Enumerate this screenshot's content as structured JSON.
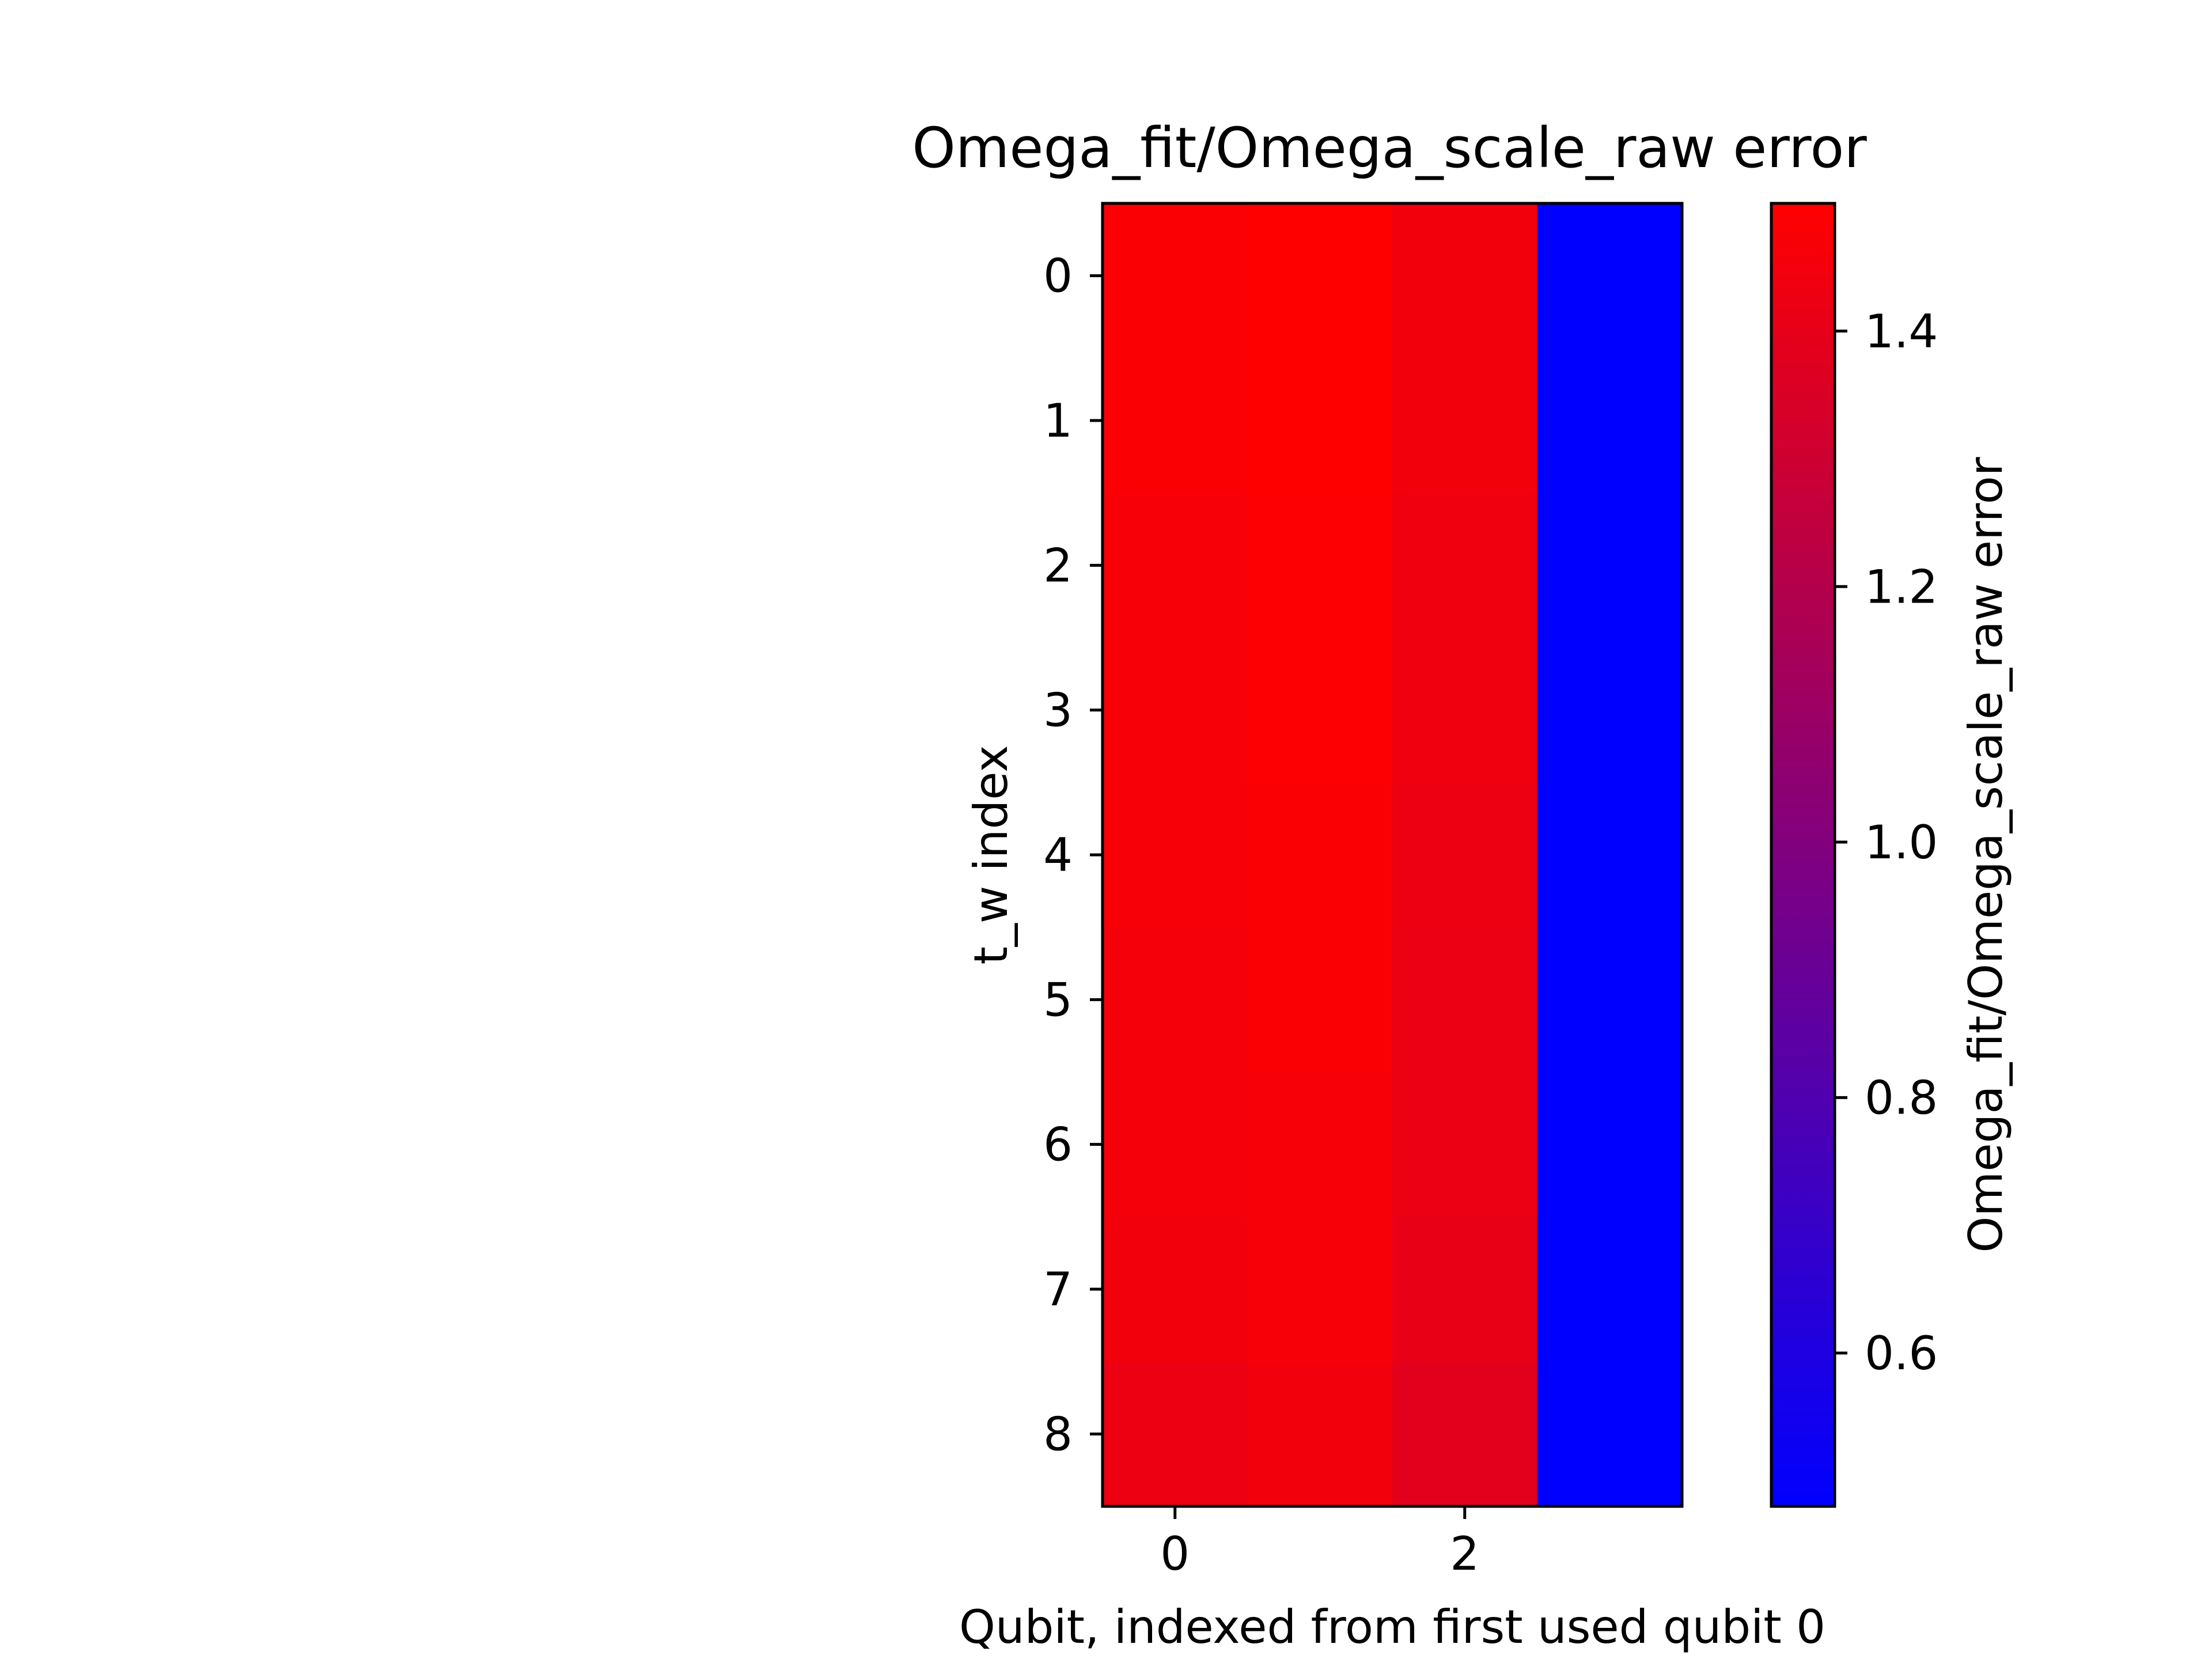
{
  "chart_data": {
    "type": "heatmap",
    "title": "Omega_fit/Omega_scale_raw error",
    "xlabel": "Qubit, indexed from first used qubit 0",
    "ylabel": "t_w index",
    "x_ticks": [
      0,
      2
    ],
    "y_ticks": [
      0,
      1,
      2,
      3,
      4,
      5,
      6,
      7,
      8
    ],
    "columns": [
      0,
      1,
      2,
      3
    ],
    "rows": [
      0,
      1,
      2,
      3,
      4,
      5,
      6,
      7,
      8
    ],
    "values": [
      [
        1.48,
        1.5,
        1.45,
        0.48
      ],
      [
        1.48,
        1.5,
        1.45,
        0.48
      ],
      [
        1.47,
        1.49,
        1.44,
        0.48
      ],
      [
        1.47,
        1.49,
        1.44,
        0.48
      ],
      [
        1.47,
        1.48,
        1.43,
        0.48
      ],
      [
        1.46,
        1.48,
        1.42,
        0.48
      ],
      [
        1.46,
        1.47,
        1.42,
        0.48
      ],
      [
        1.45,
        1.47,
        1.41,
        0.48
      ],
      [
        1.43,
        1.45,
        1.39,
        0.48
      ]
    ],
    "colormap": {
      "low_color": "#0000ff",
      "high_color": "#ff0000",
      "vmin": 0.48,
      "vmax": 1.5
    },
    "colorbar": {
      "label": "Omega_fit/Omega_scale_raw error",
      "ticks": [
        0.6,
        0.8,
        1.0,
        1.2,
        1.4
      ],
      "tick_labels": [
        "0.6",
        "0.8",
        "1.0",
        "1.2",
        "1.4"
      ]
    },
    "grid": false
  }
}
